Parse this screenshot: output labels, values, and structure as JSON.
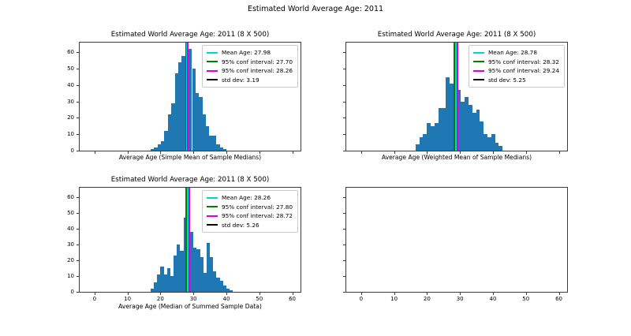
{
  "figure": {
    "suptitle": "Estimated World Average Age: 2011",
    "background": "#ffffff",
    "bar_color": "#1f77b4",
    "spine_color": "#3c3c3c",
    "line_colors": {
      "mean": "#00d5d5",
      "ci_low": "#008000",
      "ci_high": "#dd00dd",
      "std": "#000000"
    }
  },
  "chart_data": [
    {
      "id": "simple-mean",
      "type": "bar",
      "title": "Estimated World Average Age: 2011 (8 X 500)",
      "xlabel": "Average Age (Simple Mean of Sample Medians)",
      "ylabel": "",
      "bin_start": 17.0,
      "bin_width": 1.05,
      "values": [
        1,
        2,
        4,
        6,
        12,
        22,
        29,
        47,
        54,
        58,
        66,
        62,
        50,
        35,
        33,
        22,
        15,
        9,
        9,
        4,
        2,
        1
      ],
      "xlim": [
        -4.5,
        62.5
      ],
      "ylim": [
        0,
        66
      ],
      "xticks": [
        0,
        10,
        20,
        30,
        40,
        50,
        60
      ],
      "yticks": [
        0,
        10,
        20,
        30,
        40,
        50,
        60
      ],
      "show_xticklabels": false,
      "show_yticklabels": true,
      "grid": false,
      "legend_position": "upper-right",
      "legend": [
        {
          "label": "Mean Age: 27.98",
          "x": 27.98,
          "color": "mean"
        },
        {
          "label": "95% conf interval: 27.70",
          "x": 27.7,
          "color": "ci_low"
        },
        {
          "label": "95% conf interval: 28.26",
          "x": 28.26,
          "color": "ci_high"
        },
        {
          "label": "std dev: 3.19",
          "x": null,
          "color": "std"
        }
      ]
    },
    {
      "id": "weighted-mean",
      "type": "bar",
      "title": "Estimated World Average Age: 2011 (8 X 500)",
      "xlabel": "Average Age (Weighted Mean of Sample Medians)",
      "ylabel": "",
      "bin_start": 16.5,
      "bin_width": 1.15,
      "values": [
        4,
        8,
        10,
        17,
        15,
        17,
        26,
        26,
        45,
        41,
        37,
        37,
        30,
        33,
        28,
        23,
        25,
        18,
        10,
        8,
        10,
        5,
        3
      ],
      "xlim": [
        -4.5,
        62.5
      ],
      "ylim": [
        0,
        66
      ],
      "xticks": [
        0,
        10,
        20,
        30,
        40,
        50,
        60
      ],
      "yticks": [
        0,
        10,
        20,
        30,
        40,
        50,
        60
      ],
      "show_xticklabels": false,
      "show_yticklabels": false,
      "grid": false,
      "legend_position": "upper-right",
      "legend": [
        {
          "label": "Mean Age: 28.78",
          "x": 28.78,
          "color": "mean"
        },
        {
          "label": "95% conf interval: 28.32",
          "x": 28.32,
          "color": "ci_low"
        },
        {
          "label": "95% conf interval: 29.24",
          "x": 29.24,
          "color": "ci_high"
        },
        {
          "label": "std dev: 5.25",
          "x": null,
          "color": "std"
        }
      ]
    },
    {
      "id": "median-summed",
      "type": "bar",
      "title": "Estimated World Average Age: 2011 (8 X 500)",
      "xlabel": "Average Age (Median of Summed Sample Data)",
      "ylabel": "",
      "bin_start": 17.0,
      "bin_width": 1.0,
      "values": [
        2,
        6,
        11,
        16,
        11,
        15,
        10,
        23,
        30,
        26,
        47,
        26,
        38,
        28,
        27,
        22,
        12,
        31,
        22,
        13,
        9,
        7,
        4,
        2,
        1
      ],
      "xlim": [
        -4.5,
        62.5
      ],
      "ylim": [
        0,
        66
      ],
      "xticks": [
        0,
        10,
        20,
        30,
        40,
        50,
        60
      ],
      "yticks": [
        0,
        10,
        20,
        30,
        40,
        50,
        60
      ],
      "show_xticklabels": true,
      "show_yticklabels": true,
      "grid": false,
      "legend_position": "upper-right",
      "legend": [
        {
          "label": "Mean Age: 28.26",
          "x": 28.26,
          "color": "mean"
        },
        {
          "label": "95% conf interval: 27.80",
          "x": 27.8,
          "color": "ci_low"
        },
        {
          "label": "95% conf interval: 28.72",
          "x": 28.72,
          "color": "ci_high"
        },
        {
          "label": "std dev: 5.26",
          "x": null,
          "color": "std"
        }
      ]
    },
    {
      "id": "empty-panel",
      "type": "empty",
      "title": "",
      "xlabel": "",
      "ylabel": "",
      "bin_start": 0,
      "bin_width": 1,
      "values": [],
      "xlim": [
        -4.5,
        62.5
      ],
      "ylim": [
        0,
        66
      ],
      "xticks": [
        0,
        10,
        20,
        30,
        40,
        50,
        60
      ],
      "yticks": [
        0,
        10,
        20,
        30,
        40,
        50,
        60
      ],
      "show_xticklabels": true,
      "show_yticklabels": false,
      "grid": false,
      "legend_position": null,
      "legend": []
    }
  ]
}
